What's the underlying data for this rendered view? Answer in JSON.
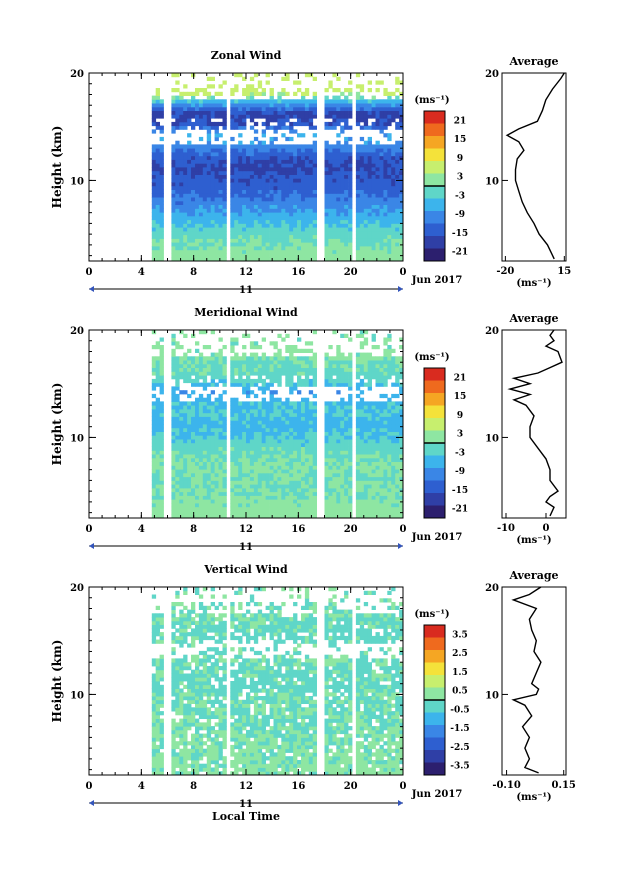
{
  "chart_data": [
    {
      "type": "heatmap",
      "title": "Zonal Wind",
      "ylabel": "Height (km)",
      "yticks": [
        "20",
        "10"
      ],
      "ylim": [
        2.5,
        20
      ],
      "xlim": [
        0,
        24
      ],
      "xticks": [
        "0",
        "4",
        "8",
        "12",
        "16",
        "20",
        "0"
      ],
      "date_axis": {
        "label": "11",
        "month_label": "Jun 2017"
      },
      "data_start_hour": 4.8,
      "data_gaps_hours": [
        [
          5.6,
          6.0
        ],
        [
          10.4,
          10.8
        ],
        [
          17.4,
          17.8
        ],
        [
          20.0,
          20.3
        ]
      ],
      "profile_by_height": [
        {
          "h": 3,
          "v": 2
        },
        {
          "h": 4,
          "v": 0
        },
        {
          "h": 5,
          "v": -2
        },
        {
          "h": 6,
          "v": -5
        },
        {
          "h": 7,
          "v": -8
        },
        {
          "h": 8,
          "v": -11
        },
        {
          "h": 9,
          "v": -14
        },
        {
          "h": 10,
          "v": -15
        },
        {
          "h": 11,
          "v": -17
        },
        {
          "h": 12,
          "v": -15
        },
        {
          "h": 13,
          "v": -10
        },
        {
          "h": 14,
          "v": -6
        },
        {
          "h": 15,
          "v": -15
        },
        {
          "h": 16,
          "v": -18
        },
        {
          "h": 17,
          "v": -8
        },
        {
          "h": 18,
          "v": 6
        },
        {
          "h": 19,
          "v": 6
        }
      ],
      "colorbar": {
        "unit": "(ms⁻¹)",
        "ticks": [
          "21",
          "15",
          "9",
          "3",
          "-3",
          "-9",
          "-15",
          "-21"
        ],
        "range": [
          -24,
          24
        ]
      },
      "average": {
        "title": "Average",
        "xlabel": "(ms⁻¹)",
        "xticks": [
          "-20",
          "15"
        ],
        "xlim": [
          -22,
          16
        ],
        "yticks": [
          "20",
          "10"
        ],
        "points": [
          {
            "h": 2.7,
            "v": 9
          },
          {
            "h": 4,
            "v": 5
          },
          {
            "h": 5,
            "v": 0
          },
          {
            "h": 6,
            "v": -3
          },
          {
            "h": 7,
            "v": -7
          },
          {
            "h": 8,
            "v": -10
          },
          {
            "h": 9,
            "v": -12
          },
          {
            "h": 10,
            "v": -14
          },
          {
            "h": 11,
            "v": -14
          },
          {
            "h": 12,
            "v": -13
          },
          {
            "h": 12.8,
            "v": -9
          },
          {
            "h": 13.6,
            "v": -12
          },
          {
            "h": 14.2,
            "v": -19
          },
          {
            "h": 14.8,
            "v": -12
          },
          {
            "h": 15.5,
            "v": -1
          },
          {
            "h": 16.5,
            "v": 2
          },
          {
            "h": 17.5,
            "v": 4
          },
          {
            "h": 18.5,
            "v": 8
          },
          {
            "h": 19.5,
            "v": 13
          },
          {
            "h": 20,
            "v": 15
          }
        ]
      }
    },
    {
      "type": "heatmap",
      "title": "Meridional Wind",
      "ylabel": "Height (km)",
      "yticks": [
        "20",
        "10"
      ],
      "ylim": [
        2.5,
        20
      ],
      "xlim": [
        0,
        24
      ],
      "xticks": [
        "0",
        "4",
        "8",
        "12",
        "16",
        "20",
        "0"
      ],
      "date_axis": {
        "label": "11",
        "month_label": "Jun 2017"
      },
      "data_start_hour": 4.8,
      "data_gaps_hours": [
        [
          5.6,
          6.0
        ],
        [
          10.4,
          10.8
        ],
        [
          17.4,
          17.8
        ],
        [
          20.0,
          20.3
        ]
      ],
      "profile_by_height": [
        {
          "h": 3,
          "v": 2
        },
        {
          "h": 4,
          "v": 1
        },
        {
          "h": 5,
          "v": 0
        },
        {
          "h": 6,
          "v": 0
        },
        {
          "h": 7,
          "v": 1
        },
        {
          "h": 8,
          "v": 0
        },
        {
          "h": 9,
          "v": -2
        },
        {
          "h": 10,
          "v": -4
        },
        {
          "h": 11,
          "v": -6
        },
        {
          "h": 12,
          "v": -4
        },
        {
          "h": 13,
          "v": -5
        },
        {
          "h": 14,
          "v": -8
        },
        {
          "h": 15,
          "v": -3
        },
        {
          "h": 16,
          "v": -1
        },
        {
          "h": 17,
          "v": 0
        },
        {
          "h": 18,
          "v": 2
        },
        {
          "h": 19,
          "v": 1
        }
      ],
      "colorbar": {
        "unit": "(ms⁻¹)",
        "ticks": [
          "21",
          "15",
          "9",
          "3",
          "-3",
          "-9",
          "-15",
          "-21"
        ],
        "range": [
          -24,
          24
        ]
      },
      "average": {
        "title": "Average",
        "xlabel": "(ms⁻¹)",
        "xticks": [
          "-10",
          "0"
        ],
        "xlim": [
          -11,
          5
        ],
        "yticks": [
          "20",
          "10"
        ],
        "points": [
          {
            "h": 2.7,
            "v": 1
          },
          {
            "h": 3.5,
            "v": 2
          },
          {
            "h": 4,
            "v": 0
          },
          {
            "h": 4.5,
            "v": 1
          },
          {
            "h": 5,
            "v": 3
          },
          {
            "h": 6,
            "v": 1
          },
          {
            "h": 7,
            "v": 1
          },
          {
            "h": 8,
            "v": 0
          },
          {
            "h": 9,
            "v": -2
          },
          {
            "h": 10,
            "v": -4
          },
          {
            "h": 11,
            "v": -4
          },
          {
            "h": 12,
            "v": -3
          },
          {
            "h": 13,
            "v": -5
          },
          {
            "h": 13.5,
            "v": -8
          },
          {
            "h": 14,
            "v": -4
          },
          {
            "h": 14.5,
            "v": -9
          },
          {
            "h": 15,
            "v": -4
          },
          {
            "h": 15.5,
            "v": -8
          },
          {
            "h": 16,
            "v": -2
          },
          {
            "h": 16.5,
            "v": 1
          },
          {
            "h": 17,
            "v": 4
          },
          {
            "h": 18,
            "v": 3
          },
          {
            "h": 18.5,
            "v": 0
          },
          {
            "h": 19,
            "v": 2
          },
          {
            "h": 19.5,
            "v": 1
          },
          {
            "h": 20,
            "v": 2
          }
        ]
      }
    },
    {
      "type": "heatmap",
      "title": "Vertical Wind",
      "ylabel": "Height (km)",
      "yticks": [
        "20",
        "10"
      ],
      "ylim": [
        2.5,
        20
      ],
      "xlim": [
        0,
        24
      ],
      "xticks": [
        "0",
        "4",
        "8",
        "12",
        "16",
        "20",
        "0"
      ],
      "xlabel": "Local Time",
      "date_axis": {
        "label": "11",
        "month_label": "Jun 2017"
      },
      "data_start_hour": 4.8,
      "data_gaps_hours": [
        [
          5.6,
          6.0
        ],
        [
          10.4,
          10.8
        ],
        [
          17.4,
          17.8
        ],
        [
          20.0,
          20.3
        ]
      ],
      "profile_by_height": [
        {
          "h": 3,
          "v": 0.2
        },
        {
          "h": 5,
          "v": 0.1
        },
        {
          "h": 7,
          "v": 0.0
        },
        {
          "h": 9,
          "v": -0.1
        },
        {
          "h": 11,
          "v": -0.2
        },
        {
          "h": 13,
          "v": -0.1
        },
        {
          "h": 15,
          "v": -0.2
        },
        {
          "h": 17,
          "v": -0.1
        },
        {
          "h": 19,
          "v": 0.0
        }
      ],
      "colorbar": {
        "unit": "(ms⁻¹)",
        "ticks": [
          "3.5",
          "2.5",
          "1.5",
          "0.5",
          "-0.5",
          "-1.5",
          "-2.5",
          "-3.5"
        ],
        "range": [
          -4,
          4
        ]
      },
      "average": {
        "title": "Average",
        "xlabel": "(ms⁻¹)",
        "xticks": [
          "-0.10",
          "0.15"
        ],
        "xlim": [
          -0.12,
          0.16
        ],
        "yticks": [
          "20",
          "10"
        ],
        "points": [
          {
            "h": 2.7,
            "v": 0.04
          },
          {
            "h": 3.2,
            "v": -0.02
          },
          {
            "h": 4,
            "v": 0.0
          },
          {
            "h": 5,
            "v": -0.02
          },
          {
            "h": 6,
            "v": 0.0
          },
          {
            "h": 7,
            "v": -0.03
          },
          {
            "h": 8,
            "v": 0.01
          },
          {
            "h": 9,
            "v": -0.02
          },
          {
            "h": 9.5,
            "v": -0.07
          },
          {
            "h": 10,
            "v": 0.03
          },
          {
            "h": 10.5,
            "v": 0.04
          },
          {
            "h": 11,
            "v": 0.01
          },
          {
            "h": 12,
            "v": 0.03
          },
          {
            "h": 13,
            "v": 0.05
          },
          {
            "h": 14,
            "v": 0.02
          },
          {
            "h": 15,
            "v": 0.03
          },
          {
            "h": 16,
            "v": 0.01
          },
          {
            "h": 17,
            "v": 0.0
          },
          {
            "h": 18,
            "v": 0.03
          },
          {
            "h": 18.8,
            "v": -0.07
          },
          {
            "h": 19.3,
            "v": 0.0
          },
          {
            "h": 20,
            "v": 0.05
          }
        ]
      }
    }
  ]
}
